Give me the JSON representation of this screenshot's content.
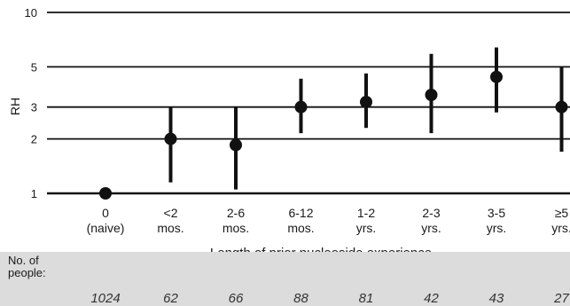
{
  "chart_data": {
    "type": "scatter",
    "ylabel": "RH",
    "xlabel": "Length of prior nucleoside experience",
    "yscale": "log",
    "ylim": [
      1,
      10
    ],
    "yticks": [
      1,
      2,
      3,
      5,
      10
    ],
    "grid": "horizontal at y ticks",
    "categories": [
      [
        "0",
        "(naive)"
      ],
      [
        "<2",
        "mos."
      ],
      [
        "2-6",
        "mos."
      ],
      [
        "6-12",
        "mos."
      ],
      [
        "1-2",
        "yrs."
      ],
      [
        "2-3",
        "yrs."
      ],
      [
        "3-5",
        "yrs."
      ],
      [
        "≥5",
        "yrs."
      ]
    ],
    "points": [
      {
        "rh": 1.0,
        "lo": 1.0,
        "hi": 1.0
      },
      {
        "rh": 2.0,
        "lo": 1.15,
        "hi": 3.0
      },
      {
        "rh": 1.85,
        "lo": 1.05,
        "hi": 3.0
      },
      {
        "rh": 3.0,
        "lo": 2.15,
        "hi": 4.3
      },
      {
        "rh": 3.2,
        "lo": 2.3,
        "hi": 4.6
      },
      {
        "rh": 3.5,
        "lo": 2.15,
        "hi": 5.9
      },
      {
        "rh": 4.4,
        "lo": 2.8,
        "hi": 6.4
      },
      {
        "rh": 3.0,
        "lo": 1.7,
        "hi": 5.0
      }
    ]
  },
  "counts": {
    "label": "No. of\npeople:",
    "values": [
      "1024",
      "62",
      "66",
      "88",
      "81",
      "42",
      "43",
      "27"
    ]
  }
}
